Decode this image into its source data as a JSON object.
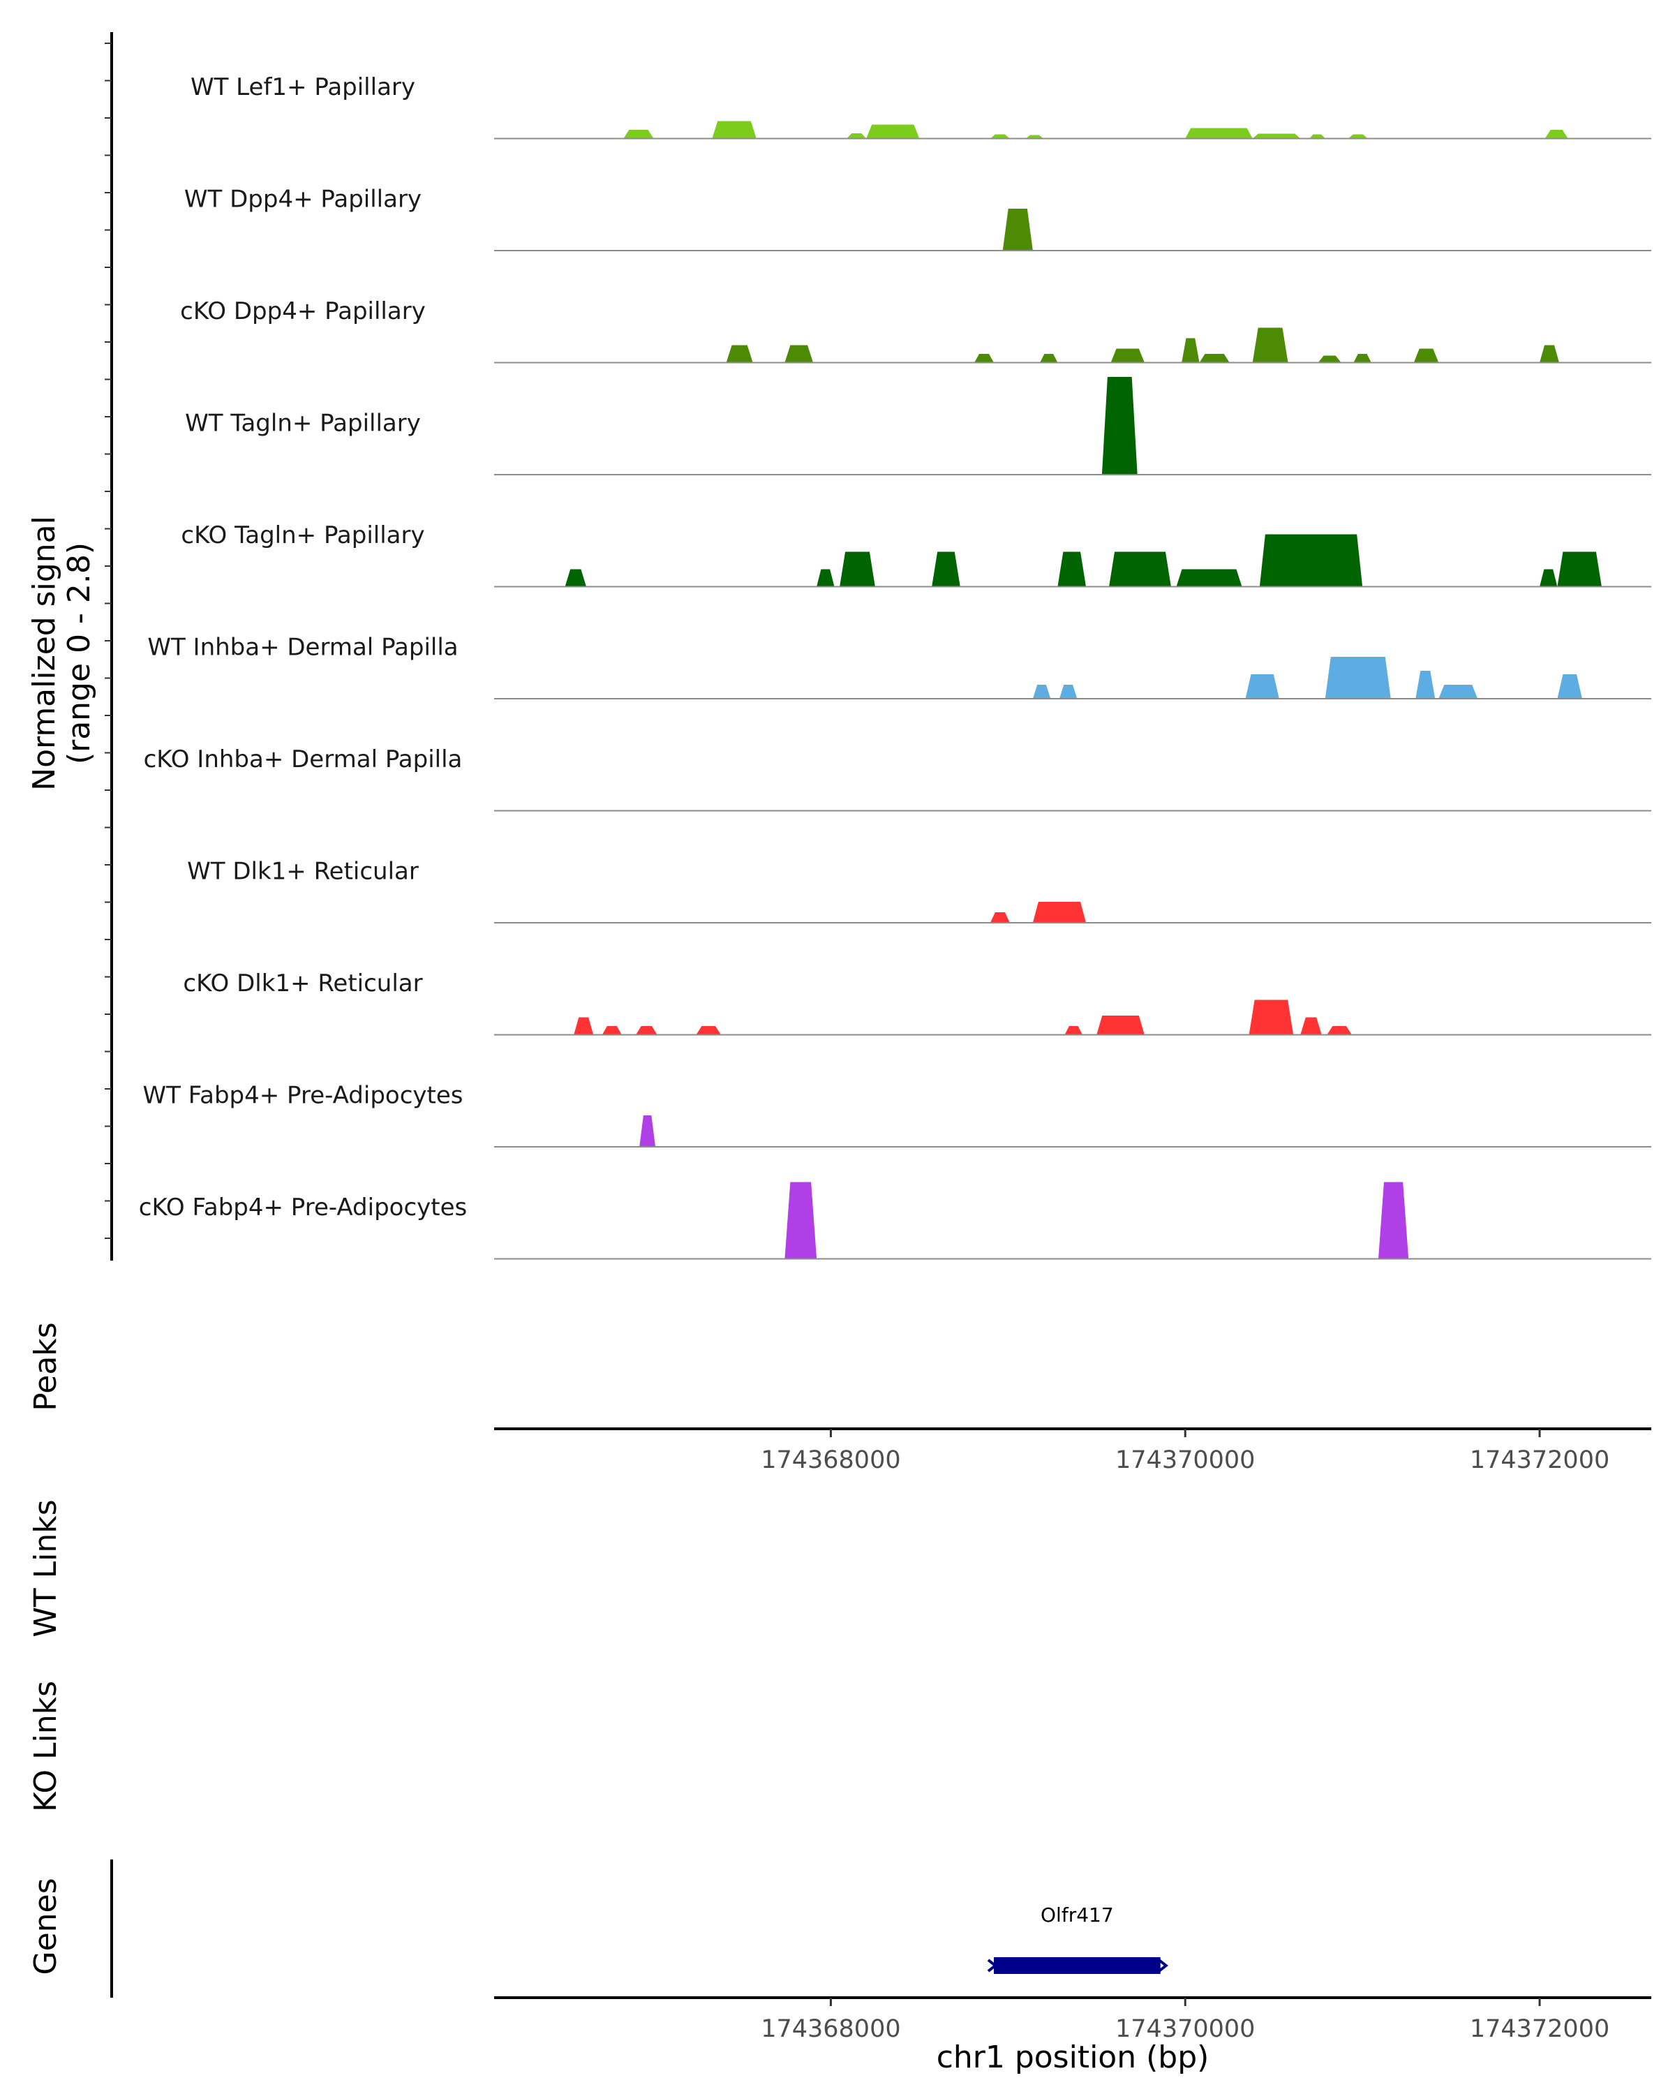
{
  "chart_data": {
    "type": "area",
    "title": "",
    "xlabel": "chr1 position (bp)",
    "ylabel": "Normalized signal\n(range 0 - 2.8)",
    "ylabel_lines": [
      "Normalized signal",
      "(range 0 - 2.8)"
    ],
    "ylim": [
      0,
      2.8
    ],
    "xlim": [
      174366100,
      174372630
    ],
    "x_ticks": [
      174368000,
      174370000,
      174372000
    ],
    "x_tick_labels": [
      "174368000",
      "174370000",
      "174372000"
    ],
    "tracks": [
      {
        "name": "WT Lef1+ Papillary",
        "color": "#7CCD1B",
        "peaks": [
          [
            174366830,
            174367000,
            0.25
          ],
          [
            174367330,
            174367580,
            0.5
          ],
          [
            174368090,
            174368200,
            0.15
          ],
          [
            174368200,
            174368500,
            0.4
          ],
          [
            174368900,
            174369010,
            0.12
          ],
          [
            174369100,
            174369200,
            0.1
          ],
          [
            174370000,
            174370380,
            0.3
          ],
          [
            174370380,
            174370650,
            0.14
          ],
          [
            174370700,
            174370790,
            0.12
          ],
          [
            174370920,
            174371030,
            0.12
          ],
          [
            174372030,
            174372160,
            0.25
          ]
        ]
      },
      {
        "name": "WT Dpp4+ Papillary",
        "color": "#4D8B04",
        "peaks": [
          [
            174368970,
            174369140,
            1.2
          ]
        ]
      },
      {
        "name": "cKO Dpp4+ Papillary",
        "color": "#4D8B04",
        "peaks": [
          [
            174367410,
            174367560,
            0.5
          ],
          [
            174367740,
            174367900,
            0.5
          ],
          [
            174368810,
            174368920,
            0.25
          ],
          [
            174369180,
            174369280,
            0.25
          ],
          [
            174369580,
            174369770,
            0.4
          ],
          [
            174369980,
            174370080,
            0.7
          ],
          [
            174370080,
            174370250,
            0.25
          ],
          [
            174370380,
            174370580,
            1.0
          ],
          [
            174370750,
            174370880,
            0.2
          ],
          [
            174370950,
            174371050,
            0.25
          ],
          [
            174371290,
            174371430,
            0.4
          ],
          [
            174372000,
            174372110,
            0.5
          ]
        ]
      },
      {
        "name": "WT Tagln+ Papillary",
        "color": "#006400",
        "peaks": [
          [
            174369530,
            174369730,
            2.8
          ]
        ]
      },
      {
        "name": "cKO Tagln+ Papillary",
        "color": "#006400",
        "peaks": [
          [
            174366500,
            174366620,
            0.5
          ],
          [
            174367920,
            174368020,
            0.5
          ],
          [
            174368050,
            174368250,
            1.0
          ],
          [
            174368570,
            174368730,
            1.0
          ],
          [
            174369280,
            174369440,
            1.0
          ],
          [
            174369570,
            174369920,
            1.0
          ],
          [
            174369950,
            174370320,
            0.5
          ],
          [
            174370420,
            174371000,
            1.5
          ],
          [
            174372000,
            174372100,
            0.5
          ],
          [
            174372100,
            174372350,
            1.0
          ]
        ]
      },
      {
        "name": "WT Inhba+ Dermal Papilla",
        "color": "#5DADE2",
        "peaks": [
          [
            174369140,
            174369240,
            0.4
          ],
          [
            174369290,
            174369390,
            0.4
          ],
          [
            174370340,
            174370530,
            0.7
          ],
          [
            174370790,
            174371160,
            1.2
          ],
          [
            174371300,
            174371410,
            0.8
          ],
          [
            174371430,
            174371650,
            0.4
          ],
          [
            174372100,
            174372240,
            0.7
          ]
        ]
      },
      {
        "name": "cKO Inhba+ Dermal Papilla",
        "color": "#5DADE2",
        "peaks": []
      },
      {
        "name": "WT Dlk1+ Reticular",
        "color": "#FF3333",
        "peaks": [
          [
            174368900,
            174369010,
            0.3
          ],
          [
            174369140,
            174369440,
            0.6
          ]
        ]
      },
      {
        "name": "cKO Dlk1+ Reticular",
        "color": "#FF3333",
        "peaks": [
          [
            174366550,
            174366660,
            0.5
          ],
          [
            174366710,
            174366820,
            0.25
          ],
          [
            174366900,
            174367020,
            0.25
          ],
          [
            174367240,
            174367380,
            0.25
          ],
          [
            174369320,
            174369420,
            0.25
          ],
          [
            174369500,
            174369770,
            0.55
          ],
          [
            174370360,
            174370610,
            1.0
          ],
          [
            174370650,
            174370770,
            0.5
          ],
          [
            174370800,
            174370940,
            0.25
          ]
        ]
      },
      {
        "name": "WT Fabp4+ Pre-Adipocytes",
        "color": "#B03FE8",
        "peaks": [
          [
            174366920,
            174367010,
            0.9
          ]
        ]
      },
      {
        "name": "cKO Fabp4+ Pre-Adipocytes",
        "color": "#B03FE8",
        "peaks": [
          [
            174367740,
            174367920,
            2.2
          ],
          [
            174371090,
            174371260,
            2.2
          ]
        ]
      }
    ],
    "panels": [
      "Peaks",
      "WT Links",
      "KO Links",
      "Genes"
    ],
    "genes": [
      {
        "name": "Olfr417",
        "start": 174368920,
        "end": 174369860,
        "color": "#00008B"
      }
    ]
  }
}
